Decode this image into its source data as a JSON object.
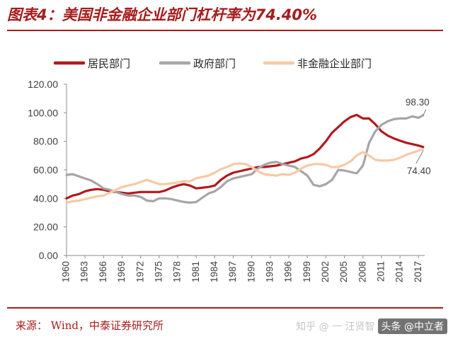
{
  "title": "图表4：美国非金融企业部门杠杆率为74.40%",
  "source": "来源：  Wind，中泰证券研究所",
  "watermark": {
    "faint": "知乎 @ 一 汪贤智",
    "user": "头条 @中立者"
  },
  "colors": {
    "accent": "#a61c1c",
    "household": "#b3181c",
    "government": "#a6a6a6",
    "nonfinancial": "#f7c9a4"
  },
  "chart_data": {
    "type": "line",
    "title": "",
    "xlabel": "",
    "ylabel": "",
    "ylim": [
      0,
      120
    ],
    "yticks": [
      "0.00",
      "20.00",
      "40.00",
      "60.00",
      "80.00",
      "100.00",
      "120.00"
    ],
    "xticks": [
      "1960",
      "1963",
      "1966",
      "1969",
      "1972",
      "1975",
      "1978",
      "1981",
      "1984",
      "1987",
      "1990",
      "1993",
      "1996",
      "1999",
      "2002",
      "2005",
      "2008",
      "2011",
      "2014",
      "2017"
    ],
    "grid": false,
    "legend": "top",
    "annotations": [
      {
        "label": "98.30",
        "series": "政府部门",
        "x": 2017.75,
        "y": 98.3
      },
      {
        "label": "74.40",
        "series": "非金融企业部门",
        "x": 2017.75,
        "y": 74.4
      }
    ],
    "series": [
      {
        "name": "居民部门",
        "color": "#b3181c",
        "points": [
          [
            1960,
            40
          ],
          [
            1961,
            42
          ],
          [
            1962,
            43
          ],
          [
            1963,
            45
          ],
          [
            1964,
            46
          ],
          [
            1965,
            46.5
          ],
          [
            1966,
            46
          ],
          [
            1967,
            45
          ],
          [
            1968,
            44.5
          ],
          [
            1969,
            44
          ],
          [
            1970,
            43.5
          ],
          [
            1971,
            44
          ],
          [
            1972,
            44.5
          ],
          [
            1973,
            44.5
          ],
          [
            1974,
            44.5
          ],
          [
            1975,
            44.5
          ],
          [
            1976,
            45.5
          ],
          [
            1977,
            47.5
          ],
          [
            1978,
            49
          ],
          [
            1979,
            50
          ],
          [
            1980,
            49
          ],
          [
            1981,
            47
          ],
          [
            1982,
            47.5
          ],
          [
            1983,
            48
          ],
          [
            1984,
            49
          ],
          [
            1985,
            53
          ],
          [
            1986,
            56
          ],
          [
            1987,
            58
          ],
          [
            1988,
            59
          ],
          [
            1989,
            60
          ],
          [
            1990,
            61
          ],
          [
            1991,
            62
          ],
          [
            1992,
            62
          ],
          [
            1993,
            62.5
          ],
          [
            1994,
            63
          ],
          [
            1995,
            64
          ],
          [
            1996,
            65
          ],
          [
            1997,
            66
          ],
          [
            1998,
            68
          ],
          [
            1999,
            69
          ],
          [
            2000,
            71
          ],
          [
            2001,
            75
          ],
          [
            2002,
            80
          ],
          [
            2003,
            86
          ],
          [
            2004,
            90
          ],
          [
            2005,
            94
          ],
          [
            2006,
            97
          ],
          [
            2007,
            98.5
          ],
          [
            2008,
            96
          ],
          [
            2009,
            96
          ],
          [
            2010,
            92
          ],
          [
            2011,
            87
          ],
          [
            2012,
            84
          ],
          [
            2013,
            82
          ],
          [
            2014,
            80.5
          ],
          [
            2015,
            79
          ],
          [
            2016,
            78
          ],
          [
            2017,
            77
          ],
          [
            2017.75,
            76
          ]
        ]
      },
      {
        "name": "政府部门",
        "color": "#a6a6a6",
        "points": [
          [
            1960,
            56.5
          ],
          [
            1961,
            57
          ],
          [
            1962,
            55.5
          ],
          [
            1963,
            54
          ],
          [
            1964,
            52.5
          ],
          [
            1965,
            50
          ],
          [
            1966,
            47
          ],
          [
            1967,
            46
          ],
          [
            1968,
            44.5
          ],
          [
            1969,
            43
          ],
          [
            1970,
            42
          ],
          [
            1971,
            42
          ],
          [
            1972,
            41
          ],
          [
            1973,
            38.5
          ],
          [
            1974,
            38
          ],
          [
            1975,
            40
          ],
          [
            1976,
            40
          ],
          [
            1977,
            39.5
          ],
          [
            1978,
            38.5
          ],
          [
            1979,
            37.5
          ],
          [
            1980,
            37
          ],
          [
            1981,
            37.5
          ],
          [
            1982,
            40.5
          ],
          [
            1983,
            43.5
          ],
          [
            1984,
            45
          ],
          [
            1985,
            48
          ],
          [
            1986,
            52
          ],
          [
            1987,
            54
          ],
          [
            1988,
            55
          ],
          [
            1989,
            56
          ],
          [
            1990,
            57
          ],
          [
            1991,
            61
          ],
          [
            1992,
            63.5
          ],
          [
            1993,
            65
          ],
          [
            1994,
            65.5
          ],
          [
            1995,
            64
          ],
          [
            1996,
            63
          ],
          [
            1997,
            62
          ],
          [
            1998,
            59
          ],
          [
            1999,
            56
          ],
          [
            2000,
            49.5
          ],
          [
            2001,
            48.5
          ],
          [
            2002,
            50
          ],
          [
            2003,
            53
          ],
          [
            2004,
            60
          ],
          [
            2005,
            59.5
          ],
          [
            2006,
            58.5
          ],
          [
            2007,
            57.5
          ],
          [
            2008,
            63
          ],
          [
            2009,
            79
          ],
          [
            2010,
            87
          ],
          [
            2011,
            91.5
          ],
          [
            2012,
            94
          ],
          [
            2013,
            95.5
          ],
          [
            2014,
            96
          ],
          [
            2015,
            96
          ],
          [
            2016,
            97.5
          ],
          [
            2017,
            96.5
          ],
          [
            2017.75,
            98.3
          ]
        ]
      },
      {
        "name": "非金融企业部门",
        "color": "#f7c9a4",
        "points": [
          [
            1960,
            37
          ],
          [
            1961,
            38
          ],
          [
            1962,
            38.5
          ],
          [
            1963,
            39.5
          ],
          [
            1964,
            40.5
          ],
          [
            1965,
            41.5
          ],
          [
            1966,
            42
          ],
          [
            1967,
            44
          ],
          [
            1968,
            46
          ],
          [
            1969,
            48
          ],
          [
            1970,
            49
          ],
          [
            1971,
            50
          ],
          [
            1972,
            51.5
          ],
          [
            1973,
            53
          ],
          [
            1974,
            51.5
          ],
          [
            1975,
            50
          ],
          [
            1976,
            50
          ],
          [
            1977,
            50.5
          ],
          [
            1978,
            51
          ],
          [
            1979,
            52
          ],
          [
            1980,
            52
          ],
          [
            1981,
            54
          ],
          [
            1982,
            55
          ],
          [
            1983,
            56
          ],
          [
            1984,
            58
          ],
          [
            1985,
            60.5
          ],
          [
            1986,
            62
          ],
          [
            1987,
            64
          ],
          [
            1988,
            64.5
          ],
          [
            1989,
            64
          ],
          [
            1990,
            62
          ],
          [
            1991,
            59
          ],
          [
            1992,
            57
          ],
          [
            1993,
            56.5
          ],
          [
            1994,
            56
          ],
          [
            1995,
            57
          ],
          [
            1996,
            56.5
          ],
          [
            1997,
            58
          ],
          [
            1998,
            61
          ],
          [
            1999,
            63
          ],
          [
            2000,
            64
          ],
          [
            2001,
            64
          ],
          [
            2002,
            63.5
          ],
          [
            2003,
            62
          ],
          [
            2004,
            62
          ],
          [
            2005,
            63.5
          ],
          [
            2006,
            66
          ],
          [
            2007,
            70
          ],
          [
            2008,
            72.5
          ],
          [
            2009,
            70
          ],
          [
            2010,
            67
          ],
          [
            2011,
            66.5
          ],
          [
            2012,
            66.5
          ],
          [
            2013,
            67
          ],
          [
            2014,
            68.5
          ],
          [
            2015,
            70.5
          ],
          [
            2016,
            72
          ],
          [
            2017,
            73.5
          ],
          [
            2017.75,
            74.4
          ]
        ]
      }
    ]
  }
}
